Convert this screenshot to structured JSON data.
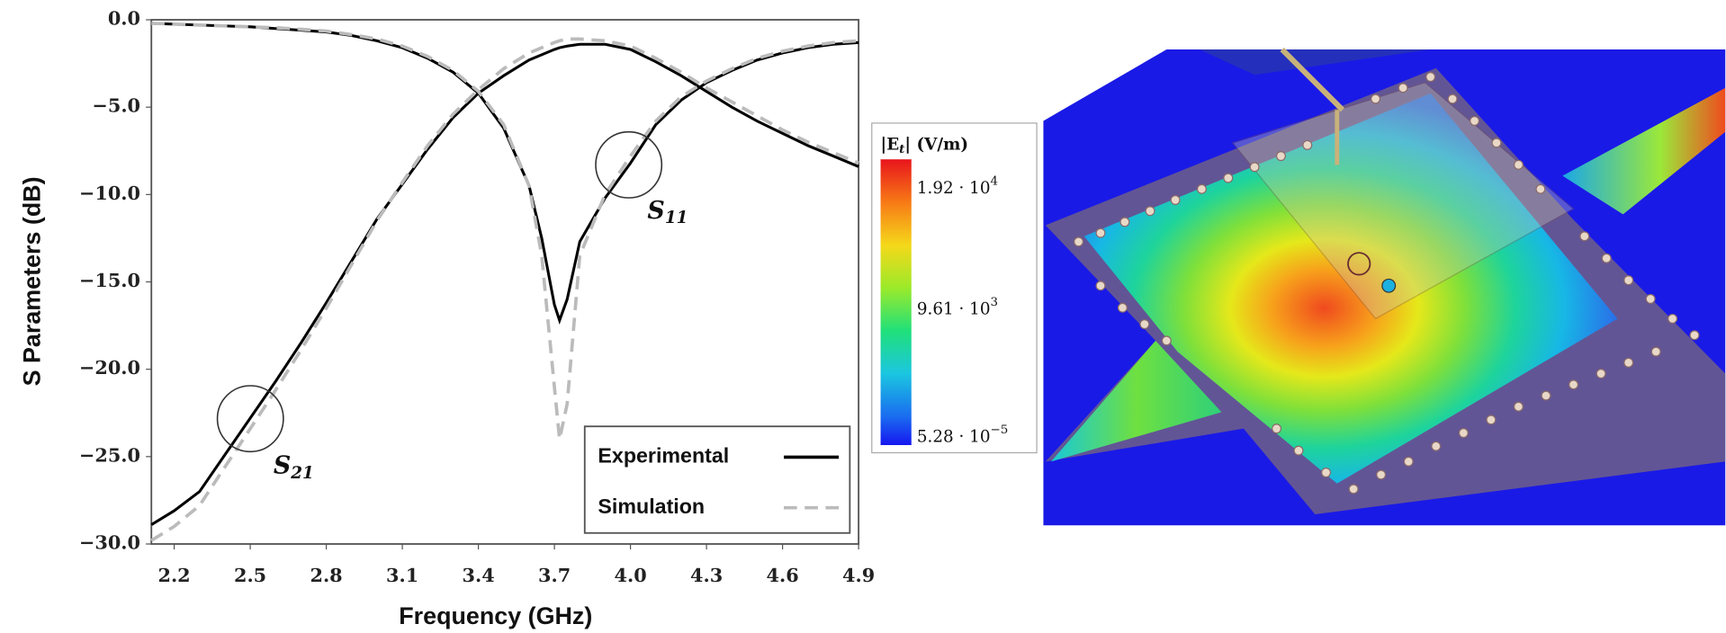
{
  "chart_data": {
    "type": "line",
    "xlabel": "Frequency (GHz)",
    "ylabel": "S Parameters (dB)",
    "x": [
      2.11,
      2.2,
      2.3,
      2.4,
      2.5,
      2.6,
      2.7,
      2.8,
      2.9,
      3.0,
      3.1,
      3.2,
      3.3,
      3.4,
      3.5,
      3.6,
      3.65,
      3.7,
      3.72,
      3.75,
      3.8,
      3.9,
      4.0,
      4.1,
      4.2,
      4.3,
      4.4,
      4.5,
      4.6,
      4.7,
      4.8,
      4.9
    ],
    "series": [
      {
        "name": "Experimental",
        "color": "#000000",
        "dashed": false,
        "curves": [
          {
            "values": [
              -28.9,
              -28.1,
              -27.0,
              -24.9,
              -22.8,
              -20.7,
              -18.5,
              -16.2,
              -13.8,
              -11.4,
              -9.4,
              -7.4,
              -5.6,
              -4.2,
              -3.2,
              -2.3,
              -2.0,
              -1.7,
              -1.6,
              -1.5,
              -1.4,
              -1.4,
              -1.7,
              -2.4,
              -3.2,
              -4.1,
              -5.0,
              -5.8,
              -6.5,
              -7.2,
              -7.8,
              -8.4
            ]
          },
          {
            "values": [
              -0.2,
              -0.25,
              -0.3,
              -0.35,
              -0.4,
              -0.5,
              -0.6,
              -0.7,
              -0.9,
              -1.2,
              -1.6,
              -2.2,
              -3.0,
              -4.2,
              -6.2,
              -9.5,
              -12.5,
              -16.3,
              -17.2,
              -16.0,
              -12.7,
              -10.2,
              -8.2,
              -6.0,
              -4.6,
              -3.6,
              -2.9,
              -2.3,
              -1.9,
              -1.6,
              -1.4,
              -1.3
            ]
          }
        ]
      },
      {
        "name": "Simulation",
        "color": "#bbbbbb",
        "dashed": true,
        "curves": [
          {
            "values": [
              -29.8,
              -29.0,
              -27.8,
              -25.6,
              -23.4,
              -21.2,
              -18.9,
              -16.5,
              -14.0,
              -11.5,
              -9.3,
              -7.2,
              -5.4,
              -4.0,
              -2.8,
              -1.9,
              -1.6,
              -1.3,
              -1.2,
              -1.1,
              -1.1,
              -1.2,
              -1.5,
              -2.2,
              -3.0,
              -3.9,
              -4.7,
              -5.5,
              -6.3,
              -7.0,
              -7.6,
              -8.2
            ]
          },
          {
            "values": [
              -0.2,
              -0.25,
              -0.3,
              -0.35,
              -0.4,
              -0.45,
              -0.55,
              -0.65,
              -0.85,
              -1.1,
              -1.5,
              -2.1,
              -2.9,
              -4.1,
              -6.0,
              -9.5,
              -13.5,
              -21.0,
              -24.0,
              -22.0,
              -13.5,
              -10.0,
              -7.8,
              -5.8,
              -4.4,
              -3.5,
              -2.8,
              -2.2,
              -1.8,
              -1.5,
              -1.3,
              -1.2
            ]
          }
        ]
      }
    ],
    "xlim": [
      2.11,
      4.9
    ],
    "ylim": [
      -30,
      0
    ],
    "xticks": [
      2.2,
      2.5,
      2.8,
      3.1,
      3.4,
      3.7,
      {
        "value": 4,
        "label": "4.0"
      },
      4.3,
      4.6,
      4.9
    ],
    "yticks": [
      {
        "value": 0,
        "label": "0.0"
      },
      {
        "value": -5,
        "label": "−5.0"
      },
      {
        "value": -10,
        "label": "−10.0"
      },
      {
        "value": -15,
        "label": "−15.0"
      },
      {
        "value": -20,
        "label": "−20.0"
      },
      {
        "value": -25,
        "label": "−25.0"
      },
      {
        "value": -30,
        "label": "−30.0"
      }
    ],
    "legend": "lower right",
    "annotations": [
      {
        "text": "S",
        "sub": "21"
      },
      {
        "text": "S",
        "sub": "11"
      }
    ]
  },
  "colorbar": {
    "title": "|E",
    "title_sub": "t",
    "title_unit": "| (V/m)",
    "labels": [
      {
        "mantissa": "1.92 · 10",
        "exp": "4"
      },
      {
        "mantissa": "9.61 · 10",
        "exp": "3"
      },
      {
        "mantissa": "5.28 · 10",
        "exp": "−5"
      }
    ]
  }
}
